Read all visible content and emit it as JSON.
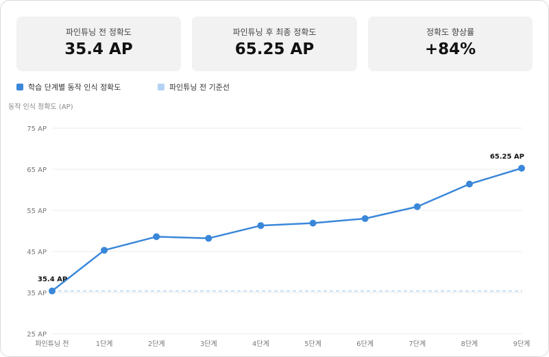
{
  "summary": {
    "before_label": "파인튜닝 전 정확도",
    "before_value": "35.4 AP",
    "after_label": "파인튜닝 후 최종 정확도",
    "after_value": "65.25 AP",
    "gain_label": "정확도 향상률",
    "gain_value": "+84%"
  },
  "colors": {
    "series": "#3a87d9",
    "baseline": "#b4d3f2",
    "grid": "#ebebeb"
  },
  "chart_data": {
    "type": "line",
    "ylabel": "동작 인식 정확도 (AP)",
    "xlabel": "",
    "ylim": [
      25,
      75
    ],
    "yticks": [
      25,
      35,
      45,
      55,
      65,
      75
    ],
    "ytick_labels": [
      "25 AP",
      "35 AP",
      "45 AP",
      "55 AP",
      "65 AP",
      "75 AP"
    ],
    "categories": [
      "파인튜닝 전",
      "1단계",
      "2단계",
      "3단계",
      "4단계",
      "5단계",
      "6단계",
      "7단계",
      "8단계",
      "9단계"
    ],
    "series": [
      {
        "name": "학습 단계별 동작 인식 정확도",
        "values": [
          35.4,
          45.3,
          48.6,
          48.2,
          51.3,
          51.9,
          53.0,
          55.9,
          61.4,
          65.25
        ]
      }
    ],
    "baseline": {
      "name": "파인튜닝 전 기준선",
      "value": 35.4
    },
    "data_labels": [
      {
        "index": 0,
        "text": "35.4 AP"
      },
      {
        "index": 9,
        "text": "65.25 AP"
      }
    ],
    "legend": [
      "학습 단계별 동작 인식 정확도",
      "파인튜닝 전 기준선"
    ],
    "grid": true
  }
}
